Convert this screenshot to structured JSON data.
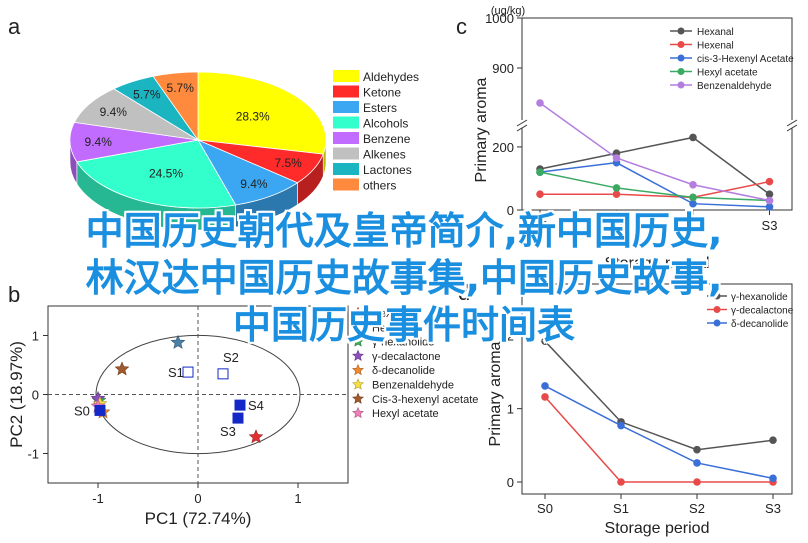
{
  "panel_labels": [
    "a",
    "b",
    "c",
    "d"
  ],
  "overlay_lines": [
    "中国历史朝代及皇帝简介,新中国历史,",
    "林汉达中国历史故事集,中国历史故事,",
    "中国历史事件时间表"
  ],
  "colors": {
    "aldehydes": "#ffff00",
    "ketone": "#ff2b2b",
    "esters": "#3ba7f2",
    "alcohols": "#33ffcc",
    "benzene": "#c26cff",
    "alkenes": "#c0c0c0",
    "lactones": "#1bb5c2",
    "others": "#ff8a3d",
    "hexanal": "#555555",
    "hexenal": "#e84a4a",
    "cis3": "#3a6fd8",
    "hexyl": "#3aaa63",
    "benzaldehyde": "#b47ee0",
    "axis": "#333333"
  },
  "chart_data": [
    {
      "panel": "a",
      "type": "pie",
      "labels": [
        "Aldehydes",
        "Ketone",
        "Esters",
        "Alcohols",
        "Benzene",
        "Alkenes",
        "Lactones",
        "others"
      ],
      "slice_labels": [
        "28.3%",
        "7.5%",
        "9.4%",
        "24.5%",
        "9.4%",
        "9.4%",
        "5.7%",
        "5.7%"
      ],
      "values": [
        28.3,
        7.5,
        9.4,
        24.5,
        9.4,
        9.4,
        5.7,
        5.7
      ],
      "color_keys": [
        "aldehydes",
        "ketone",
        "esters",
        "alcohols",
        "benzene",
        "alkenes",
        "lactones",
        "others"
      ],
      "legend": "right"
    },
    {
      "panel": "b",
      "type": "scatter",
      "xlabel": "PC1 (72.74%)",
      "ylabel": "PC2 (18.97%)",
      "xlim": [
        -1.5,
        1.5
      ],
      "ylim": [
        -1.5,
        1.5
      ],
      "xticks": [
        "-1",
        "0",
        "1"
      ],
      "yticks": [
        "1",
        "0",
        "-1"
      ],
      "legend": "right",
      "series": [
        {
          "name": "Hexanol",
          "marker": "star",
          "color": "#e03030",
          "x": [
            0.58
          ],
          "y": [
            -0.72
          ]
        },
        {
          "name": "Hexanal",
          "marker": "star",
          "color": "#4a7fa6",
          "x": [
            -0.2
          ],
          "y": [
            0.88
          ]
        },
        {
          "name": "γ-hexanolide",
          "marker": "star",
          "color": "#3fae58",
          "x": [
            -0.99
          ],
          "y": [
            -0.1
          ]
        },
        {
          "name": "γ-decalactone",
          "marker": "star",
          "color": "#8d4fc0",
          "x": [
            -1.0
          ],
          "y": [
            -0.07
          ]
        },
        {
          "name": "δ-decanolide",
          "marker": "star",
          "color": "#f08a30",
          "x": [
            -0.95
          ],
          "y": [
            -0.3
          ]
        },
        {
          "name": "Benzenaldehyde",
          "marker": "star",
          "color": "#f5e040",
          "x": [
            -0.98
          ],
          "y": [
            -0.16
          ]
        },
        {
          "name": "Cis-3-hexenyl acetate",
          "marker": "star",
          "color": "#a05a2c",
          "x": [
            -0.76
          ],
          "y": [
            0.43
          ]
        },
        {
          "name": "Hexyl acetate",
          "marker": "star",
          "color": "#f080b8",
          "x": [
            -1.0
          ],
          "y": [
            -0.2
          ]
        }
      ],
      "samples": [
        {
          "label": "S0",
          "x": -0.98,
          "y": -0.27
        },
        {
          "label": "S1",
          "x": -0.1,
          "y": 0.38
        },
        {
          "label": "S2",
          "x": 0.25,
          "y": 0.35
        },
        {
          "label": "S3",
          "x": 0.4,
          "y": -0.4
        },
        {
          "label": "S4",
          "x": 0.42,
          "y": -0.18
        }
      ],
      "ellipse": {
        "cx": 0.0,
        "cy": 0.0,
        "rx": 1.02,
        "ry": 1.18
      }
    },
    {
      "panel": "c",
      "type": "line",
      "xlabel": "Storage period",
      "ylabel": "Primary aroma",
      "yaxis_label": "(ug/kg)",
      "categories": [
        "S0",
        "S1",
        "S2",
        "S3"
      ],
      "yticks": [
        "0",
        "200",
        "900",
        "1000"
      ],
      "axis_break": true,
      "legend": "top-right",
      "series": [
        {
          "name": "Hexanal",
          "color_key": "hexanal",
          "values": [
            130,
            180,
            230,
            50
          ]
        },
        {
          "name": "Hexenal",
          "color_key": "hexenal",
          "values": [
            50,
            50,
            40,
            90
          ]
        },
        {
          "name": "cis-3-Hexenyl Acetate",
          "color_key": "cis3",
          "values": [
            120,
            150,
            20,
            10
          ]
        },
        {
          "name": "Hexyl acetate",
          "color_key": "hexyl",
          "values": [
            120,
            70,
            40,
            30
          ]
        },
        {
          "name": "Benzenaldehyde",
          "color_key": "benzaldehyde",
          "values": [
            830,
            720,
            80,
            30
          ]
        }
      ]
    },
    {
      "panel": "d",
      "type": "line",
      "xlabel": "Storage period",
      "ylabel": "Primary aroma",
      "categories": [
        "S0",
        "S1",
        "S2",
        "S3"
      ],
      "ylim": [
        0,
        2.7
      ],
      "yticks": [
        "0",
        "1",
        "2"
      ],
      "legend": "top-right",
      "series": [
        {
          "name": "γ-hexanolide",
          "color_key": "hexanal",
          "values": [
            1.92,
            0.82,
            0.44,
            0.57
          ]
        },
        {
          "name": "γ-decalactone",
          "color_key": "hexenal",
          "values": [
            1.16,
            0.0,
            0.0,
            0.0
          ]
        },
        {
          "name": "δ-decanolide",
          "color_key": "cis3",
          "values": [
            1.31,
            0.77,
            0.26,
            0.05
          ]
        }
      ]
    }
  ]
}
